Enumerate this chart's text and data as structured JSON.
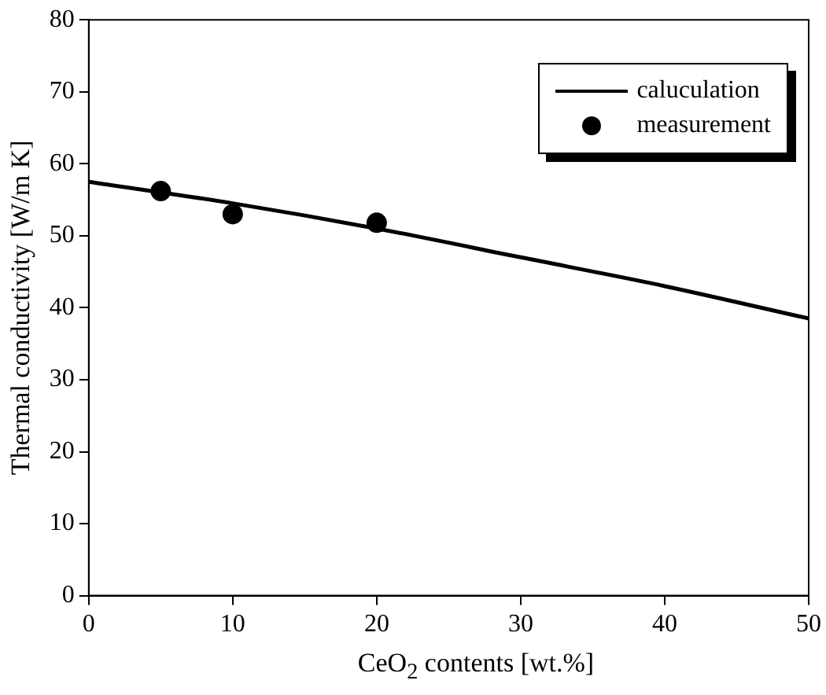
{
  "chart_data": {
    "type": "line",
    "xlabel": "CeO$_{2}$ contents [wt.%]",
    "ylabel": "Thermal conductivity [W/m K]",
    "xlim": [
      0,
      50
    ],
    "xticks": [
      0,
      10,
      20,
      30,
      40,
      50
    ],
    "ylim": [
      0,
      80
    ],
    "yticks": [
      0,
      10,
      20,
      30,
      40,
      50,
      60,
      70,
      80
    ],
    "grid": false,
    "legend": "top right",
    "series": [
      {
        "name": "caluculation",
        "color": "#000000",
        "marker": "none",
        "line_style": "solid",
        "x": [
          0,
          10,
          20,
          30,
          40,
          50
        ],
        "values": [
          57.5,
          54.5,
          51,
          47,
          43,
          38.5
        ]
      },
      {
        "name": "measurement",
        "type": "scatter",
        "color": "#000000",
        "marker": "circle",
        "x": [
          5,
          10,
          20
        ],
        "values": [
          56.2,
          53,
          51.8
        ]
      }
    ]
  }
}
